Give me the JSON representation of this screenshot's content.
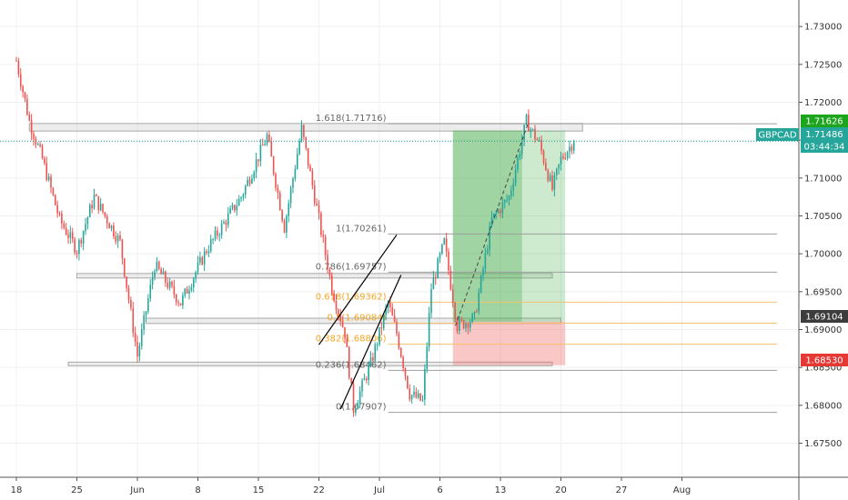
{
  "symbol": "GBPCAD",
  "countdown": "03:44:34",
  "price_tags": {
    "current": "1.71486",
    "resistance": "1.71626",
    "support": "1.69104",
    "stop": "1.68530"
  },
  "fib_labels": [
    {
      "text": "1.618(1.71716)",
      "price": 1.71716,
      "color": "gray"
    },
    {
      "text": "1(1.70261)",
      "price": 1.70261,
      "color": "gray"
    },
    {
      "text": "0.786(1.69757)",
      "price": 1.69757,
      "color": "gray"
    },
    {
      "text": "0.618(1.69362)",
      "price": 1.69362,
      "color": "orange"
    },
    {
      "text": "0.5(1.69084)",
      "price": 1.69084,
      "color": "orange"
    },
    {
      "text": "0.382(1.68806)",
      "price": 1.68806,
      "color": "orange"
    },
    {
      "text": "0.236(1.68462)",
      "price": 1.68462,
      "color": "gray"
    },
    {
      "text": "0(1.67907)",
      "price": 1.67907,
      "color": "gray"
    }
  ],
  "colors": {
    "up": "#26a69a",
    "down": "#ef5350",
    "profit": "#4caf50",
    "loss": "#f28b8b",
    "fib_orange": "#f5a623",
    "current_tag": "#26a69a",
    "resistance_tag": "#1ea51e",
    "support_tag": "#3c3c3c",
    "stop_tag": "#e53935"
  },
  "chart_data": {
    "type": "candlestick",
    "symbol": "GBPCAD",
    "y_ticks": [
      "1.73000",
      "1.72500",
      "1.72000",
      "1.71500",
      "1.71000",
      "1.70500",
      "1.70000",
      "1.69500",
      "1.69000",
      "1.68500",
      "1.68000",
      "1.67500"
    ],
    "y_range": [
      1.6705,
      1.7335
    ],
    "x_ticks": [
      "18",
      "25",
      "Jun",
      "8",
      "15",
      "22",
      "Jul",
      "6",
      "13",
      "20",
      "27",
      "Aug"
    ],
    "keypoints": [
      {
        "day": 0,
        "price": 1.7255
      },
      {
        "day": 1.5,
        "price": 1.7175
      },
      {
        "day": 3,
        "price": 1.7125
      },
      {
        "day": 5,
        "price": 1.7045
      },
      {
        "day": 7,
        "price": 1.7005
      },
      {
        "day": 9,
        "price": 1.7075
      },
      {
        "day": 12,
        "price": 1.7015
      },
      {
        "day": 14,
        "price": 1.6865
      },
      {
        "day": 16,
        "price": 1.6985
      },
      {
        "day": 19,
        "price": 1.6935
      },
      {
        "day": 22,
        "price": 1.7005
      },
      {
        "day": 26,
        "price": 1.7075
      },
      {
        "day": 29,
        "price": 1.7155
      },
      {
        "day": 31,
        "price": 1.7035
      },
      {
        "day": 33,
        "price": 1.7165
      },
      {
        "day": 35,
        "price": 1.7045
      },
      {
        "day": 36.5,
        "price": 1.6955
      },
      {
        "day": 38,
        "price": 1.6895
      },
      {
        "day": 39,
        "price": 1.6795
      },
      {
        "day": 41,
        "price": 1.6855
      },
      {
        "day": 43,
        "price": 1.6935
      },
      {
        "day": 44,
        "price": 1.6895
      },
      {
        "day": 45.5,
        "price": 1.6815
      },
      {
        "day": 47,
        "price": 1.6805
      },
      {
        "day": 48,
        "price": 1.6955
      },
      {
        "day": 49.5,
        "price": 1.7015
      },
      {
        "day": 51,
        "price": 1.6905
      },
      {
        "day": 53,
        "price": 1.6915
      },
      {
        "day": 55,
        "price": 1.7045
      },
      {
        "day": 57,
        "price": 1.7075
      },
      {
        "day": 59,
        "price": 1.7175
      },
      {
        "day": 60.5,
        "price": 1.7145
      },
      {
        "day": 62,
        "price": 1.7085
      },
      {
        "day": 63,
        "price": 1.7125
      },
      {
        "day": 64.5,
        "price": 1.7149
      }
    ],
    "zones": [
      {
        "from_day": 1.5,
        "to_day": 65.5,
        "low": 1.7162,
        "high": 1.7172
      },
      {
        "from_day": 7,
        "to_day": 62,
        "low": 1.6968,
        "high": 1.6974
      },
      {
        "from_day": 15,
        "to_day": 63,
        "low": 1.6908,
        "high": 1.6915
      },
      {
        "from_day": 6,
        "to_day": 62,
        "low": 1.6853,
        "high": 1.6857
      }
    ],
    "position": {
      "from_day": 50.5,
      "to_day": 63.5,
      "entry": 1.69104,
      "target": 1.71626,
      "stop": 1.6853
    },
    "channel": {
      "upper": [
        {
          "day": 35,
          "price": 1.688
        },
        {
          "day": 44,
          "price": 1.7025
        }
      ],
      "lower": [
        {
          "day": 37.5,
          "price": 1.6795
        },
        {
          "day": 44.5,
          "price": 1.6972
        }
      ]
    },
    "projection": [
      {
        "day": 50.8,
        "price": 1.6905
      },
      {
        "day": 59.2,
        "price": 1.7172
      }
    ],
    "fib_anchor_day": 43,
    "fib_end_day": 88
  }
}
